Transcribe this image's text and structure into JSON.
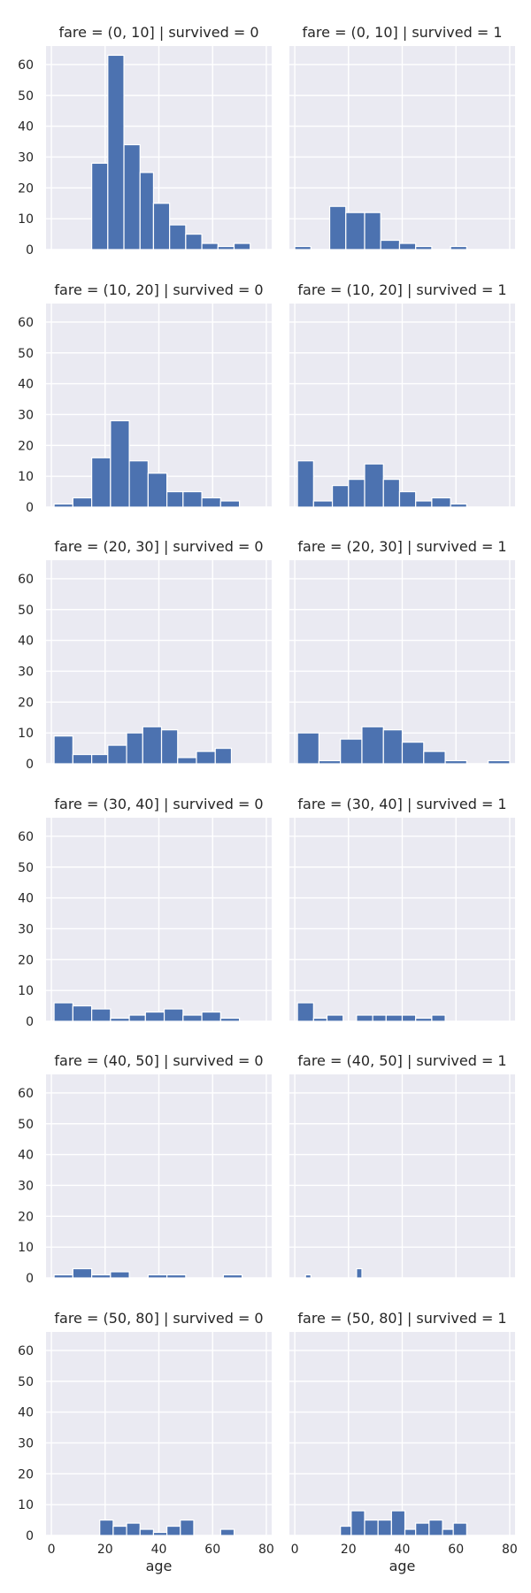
{
  "chart_data": {
    "type": "bar",
    "layout": "facet-grid",
    "xlabel": "age",
    "xlim": [
      -2,
      82
    ],
    "ylim": [
      0,
      66
    ],
    "xticks": [
      0,
      20,
      40,
      60,
      80
    ],
    "yticks": [
      0,
      10,
      20,
      30,
      40,
      50,
      60
    ],
    "grid": true,
    "panels": [
      {
        "title": "fare = (0, 10] | survived = 0",
        "bins": [
          [
            15,
            21
          ],
          [
            21,
            27
          ],
          [
            27,
            33
          ],
          [
            33,
            38
          ],
          [
            38,
            44
          ],
          [
            44,
            50
          ],
          [
            50,
            56
          ],
          [
            56,
            62
          ],
          [
            62,
            68
          ],
          [
            68,
            74
          ]
        ],
        "values": [
          28,
          63,
          34,
          25,
          15,
          8,
          5,
          2,
          1,
          2
        ]
      },
      {
        "title": "fare = (0, 10] | survived = 1",
        "bins": [
          [
            0,
            6
          ],
          [
            6,
            13
          ],
          [
            13,
            19
          ],
          [
            19,
            26
          ],
          [
            26,
            32
          ],
          [
            32,
            39
          ],
          [
            39,
            45
          ],
          [
            45,
            51
          ],
          [
            51,
            58
          ],
          [
            58,
            64
          ]
        ],
        "values": [
          1,
          0,
          14,
          12,
          12,
          3,
          2,
          1,
          0,
          1
        ]
      },
      {
        "title": "fare = (10, 20] | survived = 0",
        "bins": [
          [
            1,
            8
          ],
          [
            8,
            15
          ],
          [
            15,
            22
          ],
          [
            22,
            29
          ],
          [
            29,
            36
          ],
          [
            36,
            43
          ],
          [
            43,
            49
          ],
          [
            49,
            56
          ],
          [
            56,
            63
          ],
          [
            63,
            70
          ]
        ],
        "values": [
          1,
          3,
          16,
          28,
          15,
          11,
          5,
          5,
          3,
          2
        ]
      },
      {
        "title": "fare = (10, 20] | survived = 1",
        "bins": [
          [
            1,
            7
          ],
          [
            7,
            14
          ],
          [
            14,
            20
          ],
          [
            20,
            26
          ],
          [
            26,
            33
          ],
          [
            33,
            39
          ],
          [
            39,
            45
          ],
          [
            45,
            51
          ],
          [
            51,
            58
          ],
          [
            58,
            64
          ]
        ],
        "values": [
          15,
          2,
          7,
          9,
          14,
          9,
          5,
          2,
          3,
          1
        ]
      },
      {
        "title": "fare = (20, 30] | survived = 0",
        "bins": [
          [
            1,
            8
          ],
          [
            8,
            15
          ],
          [
            15,
            21
          ],
          [
            21,
            28
          ],
          [
            28,
            34
          ],
          [
            34,
            41
          ],
          [
            41,
            47
          ],
          [
            47,
            54
          ],
          [
            54,
            61
          ],
          [
            61,
            67
          ]
        ],
        "values": [
          9,
          3,
          3,
          6,
          10,
          12,
          11,
          2,
          4,
          5
        ]
      },
      {
        "title": "fare = (20, 30] | survived = 1",
        "bins": [
          [
            1,
            9
          ],
          [
            9,
            17
          ],
          [
            17,
            25
          ],
          [
            25,
            33
          ],
          [
            33,
            40
          ],
          [
            40,
            48
          ],
          [
            48,
            56
          ],
          [
            56,
            64
          ],
          [
            64,
            72
          ],
          [
            72,
            80
          ]
        ],
        "values": [
          10,
          1,
          8,
          12,
          11,
          7,
          4,
          1,
          0,
          1
        ]
      },
      {
        "title": "fare = (30, 40] | survived = 0",
        "bins": [
          [
            1,
            8
          ],
          [
            8,
            15
          ],
          [
            15,
            22
          ],
          [
            22,
            29
          ],
          [
            29,
            35
          ],
          [
            35,
            42
          ],
          [
            42,
            49
          ],
          [
            49,
            56
          ],
          [
            56,
            63
          ],
          [
            63,
            70
          ]
        ],
        "values": [
          6,
          5,
          4,
          1,
          2,
          3,
          4,
          2,
          3,
          1
        ]
      },
      {
        "title": "fare = (30, 40] | survived = 1",
        "bins": [
          [
            1,
            7
          ],
          [
            7,
            12
          ],
          [
            12,
            18
          ],
          [
            18,
            23
          ],
          [
            23,
            29
          ],
          [
            29,
            34
          ],
          [
            34,
            40
          ],
          [
            40,
            45
          ],
          [
            45,
            51
          ],
          [
            51,
            56
          ]
        ],
        "values": [
          6,
          1,
          2,
          0,
          2,
          2,
          2,
          2,
          1,
          2
        ]
      },
      {
        "title": "fare = (40, 50] | survived = 0",
        "bins": [
          [
            1,
            8
          ],
          [
            8,
            15
          ],
          [
            15,
            22
          ],
          [
            22,
            29
          ],
          [
            29,
            36
          ],
          [
            36,
            43
          ],
          [
            43,
            50
          ],
          [
            50,
            57
          ],
          [
            57,
            64
          ],
          [
            64,
            71
          ]
        ],
        "values": [
          1,
          3,
          1,
          2,
          0,
          1,
          1,
          0,
          0,
          1
        ]
      },
      {
        "title": "fare = (40, 50] | survived = 1",
        "bins": [
          [
            1,
            4
          ],
          [
            4,
            6
          ],
          [
            6,
            8
          ],
          [
            8,
            11
          ],
          [
            11,
            13
          ],
          [
            13,
            16
          ],
          [
            16,
            18
          ],
          [
            18,
            20
          ],
          [
            20,
            23
          ],
          [
            23,
            25
          ]
        ],
        "values": [
          0,
          1,
          0,
          0,
          0,
          0,
          0,
          0,
          0,
          3
        ]
      },
      {
        "title": "fare = (50, 80] | survived = 0",
        "bins": [
          [
            18,
            23
          ],
          [
            23,
            28
          ],
          [
            28,
            33
          ],
          [
            33,
            38
          ],
          [
            38,
            43
          ],
          [
            43,
            48
          ],
          [
            48,
            53
          ],
          [
            53,
            58
          ],
          [
            58,
            63
          ],
          [
            63,
            68
          ]
        ],
        "values": [
          5,
          3,
          4,
          2,
          1,
          3,
          5,
          0,
          0,
          2
        ]
      },
      {
        "title": "fare = (50, 80] | survived = 1",
        "bins": [
          [
            17,
            21
          ],
          [
            21,
            26
          ],
          [
            26,
            31
          ],
          [
            31,
            36
          ],
          [
            36,
            41
          ],
          [
            41,
            45
          ],
          [
            45,
            50
          ],
          [
            50,
            55
          ],
          [
            55,
            59
          ],
          [
            59,
            64
          ]
        ],
        "values": [
          3,
          8,
          5,
          5,
          8,
          2,
          4,
          5,
          2,
          4
        ]
      }
    ]
  }
}
